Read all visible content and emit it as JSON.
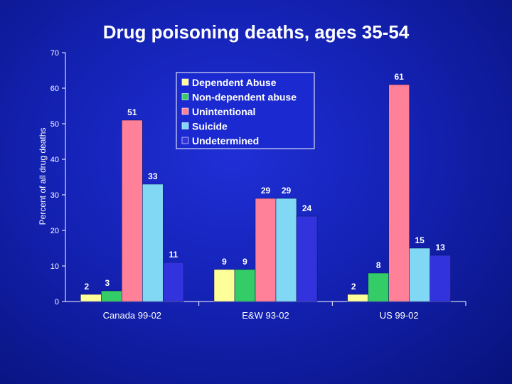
{
  "chart_data": {
    "type": "bar",
    "title": "Drug poisoning deaths, ages 35-54",
    "xlabel": "",
    "ylabel": "Percent of all drug deaths",
    "ylim": [
      0,
      70
    ],
    "yticks": [
      0,
      10,
      20,
      30,
      40,
      50,
      60,
      70
    ],
    "grid": false,
    "legend_position": "top-center",
    "categories": [
      "Canada 99-02",
      "E&W 93-02",
      "US 99-02"
    ],
    "series": [
      {
        "name": "Dependent  Abuse",
        "color": "#ffff99",
        "values": [
          2,
          9,
          2
        ]
      },
      {
        "name": "Non-dependent abuse",
        "color": "#33cc66",
        "values": [
          3,
          9,
          8
        ]
      },
      {
        "name": "Unintentional",
        "color": "#ff8099",
        "values": [
          51,
          29,
          61
        ]
      },
      {
        "name": "Suicide",
        "color": "#80d8f4",
        "values": [
          33,
          29,
          15
        ]
      },
      {
        "name": "Undetermined",
        "color": "#3333dd",
        "values": [
          11,
          24,
          13
        ]
      }
    ]
  }
}
